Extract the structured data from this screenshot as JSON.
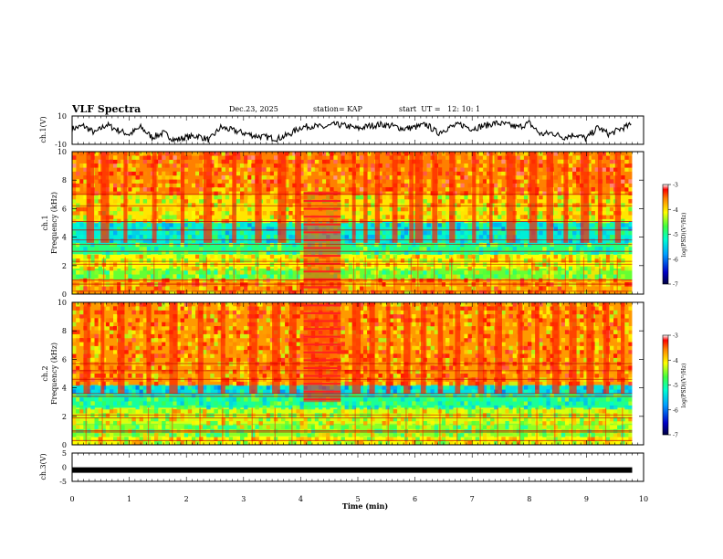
{
  "header": {
    "title": "VLF Spectra",
    "date": "Dec.23, 2025",
    "station": "station= KAP",
    "start": "start  UT =   12: 10: 1"
  },
  "colors": {
    "spectrum_low": "#0000c8",
    "spectrum_mid": "#00ff80",
    "spectrum_high": "#ff0000",
    "trace": "#000000",
    "background": "#ffffff"
  },
  "chart_data": [
    {
      "type": "line",
      "name": "ch1-waveform",
      "ylabel": "ch.1(V)",
      "ylim": [
        -10,
        10
      ],
      "yticks": [
        "10",
        "-10"
      ],
      "xlim": [
        0,
        10
      ],
      "x_end": 9.8,
      "series": [
        {
          "name": "ch.1",
          "x": [
            0,
            0.2,
            0.4,
            0.6,
            0.8,
            1.0,
            1.2,
            1.4,
            1.6,
            1.8,
            2.0,
            2.2,
            2.4,
            2.6,
            2.8,
            3.0,
            3.2,
            3.4,
            3.6,
            3.8,
            4.0,
            4.2,
            4.4,
            4.6,
            4.8,
            5.0,
            5.2,
            5.4,
            5.6,
            5.8,
            6.0,
            6.2,
            6.4,
            6.6,
            6.8,
            7.0,
            7.2,
            7.4,
            7.6,
            7.8,
            8.0,
            8.2,
            8.4,
            8.6,
            8.8,
            9.0,
            9.2,
            9.4,
            9.6,
            9.8
          ],
          "values": [
            1,
            3,
            -2,
            4,
            0,
            -3,
            2,
            -5,
            -2,
            -7,
            -5,
            -4,
            -7,
            2,
            0,
            -2,
            -4,
            -5,
            -6,
            -3,
            2,
            3,
            2,
            4,
            3,
            1,
            3,
            4,
            3,
            1,
            2,
            4,
            -2,
            2,
            4,
            1,
            3,
            5,
            4,
            2,
            5,
            -3,
            -2,
            -5,
            -3,
            -6,
            2,
            -3,
            1,
            4
          ]
        }
      ]
    },
    {
      "type": "heatmap",
      "name": "ch1-spectrogram",
      "ylabel": "ch.1 Frequency (kHz)",
      "yticks": [
        "0",
        "2",
        "4",
        "6",
        "8",
        "10"
      ],
      "ylim": [
        0,
        10
      ],
      "xlim": [
        0,
        10
      ],
      "x_end": 9.8,
      "colorbar": {
        "label": "log(PSD)(V²/Hz)",
        "ticks": [
          "-3",
          "-4",
          "-5",
          "-6",
          "-7"
        ],
        "range": [
          -7,
          -3
        ]
      },
      "bands": [
        {
          "from": 0.0,
          "to": 1.0,
          "value": -3.8
        },
        {
          "from": 1.0,
          "to": 1.8,
          "value": -4.6
        },
        {
          "from": 1.8,
          "to": 2.8,
          "value": -4.2
        },
        {
          "from": 2.8,
          "to": 3.5,
          "value": -4.9
        },
        {
          "from": 3.5,
          "to": 5.1,
          "value": -5.3
        },
        {
          "from": 5.1,
          "to": 7.0,
          "value": -4.1
        },
        {
          "from": 7.0,
          "to": 10.0,
          "value": -3.7
        }
      ],
      "burst_times": [
        0.25,
        0.5,
        0.9,
        1.4,
        1.9,
        2.3,
        2.8,
        3.2,
        3.6,
        3.9,
        4.9,
        5.1,
        5.3,
        5.6,
        5.9,
        6.0,
        6.3,
        6.6,
        7.0,
        7.3,
        7.6,
        8.0,
        8.3,
        8.6,
        8.9,
        9.2,
        9.5
      ],
      "event": {
        "t_from": 4.05,
        "t_to": 4.7,
        "f_from": 0.3,
        "f_to": 7.2,
        "value": -3.5
      },
      "tones_khz": [
        0.2,
        0.7,
        1.0,
        2.1,
        2.3,
        3.0,
        3.5,
        3.8,
        4.5,
        5.1,
        6.2,
        7.0
      ]
    },
    {
      "type": "heatmap",
      "name": "ch2-spectrogram",
      "ylabel": "ch.2 Frequency (kHz)",
      "yticks": [
        "0",
        "2",
        "4",
        "6",
        "8",
        "10"
      ],
      "ylim": [
        0,
        10
      ],
      "xlim": [
        0,
        10
      ],
      "x_end": 9.8,
      "colorbar": {
        "label": "log(PSD)(V²/Hz)",
        "ticks": [
          "-3",
          "-4",
          "-5",
          "-6",
          "-7"
        ],
        "range": [
          -7,
          -3
        ]
      },
      "bands": [
        {
          "from": 0.0,
          "to": 0.6,
          "value": -4.2
        },
        {
          "from": 0.6,
          "to": 1.5,
          "value": -4.5
        },
        {
          "from": 1.5,
          "to": 2.6,
          "value": -4.3
        },
        {
          "from": 2.6,
          "to": 3.5,
          "value": -5.0
        },
        {
          "from": 3.5,
          "to": 4.2,
          "value": -5.4
        },
        {
          "from": 4.2,
          "to": 10.0,
          "value": -3.8
        }
      ],
      "burst_times": [
        0.2,
        0.5,
        0.8,
        1.3,
        1.7,
        2.2,
        2.6,
        3.1,
        3.5,
        3.8,
        4.9,
        5.2,
        5.5,
        5.8,
        6.1,
        6.4,
        6.7,
        7.1,
        7.4,
        7.8,
        8.1,
        8.4,
        8.7,
        9.0,
        9.3,
        9.6
      ],
      "event": {
        "t_from": 4.05,
        "t_to": 4.7,
        "f_from": 3.0,
        "f_to": 10.0,
        "value": -3.4
      },
      "tones_khz": [
        0.3,
        0.9,
        1.0,
        1.9,
        2.1,
        3.4,
        3.6,
        4.6,
        5.2,
        5.7
      ]
    },
    {
      "type": "line",
      "name": "ch3-waveform",
      "ylabel": "ch.3(V)",
      "ylim": [
        -5,
        5
      ],
      "yticks": [
        "5",
        "0",
        "-5"
      ],
      "xlim": [
        0,
        10
      ],
      "x_end": 9.8,
      "series": [
        {
          "name": "ch.3",
          "x": [
            0,
            9.8
          ],
          "values": [
            -1,
            -1
          ]
        }
      ]
    }
  ],
  "x_axis": {
    "label": "Time (min)",
    "ticks": [
      "0",
      "1",
      "2",
      "3",
      "4",
      "5",
      "6",
      "7",
      "8",
      "9",
      "10"
    ]
  }
}
